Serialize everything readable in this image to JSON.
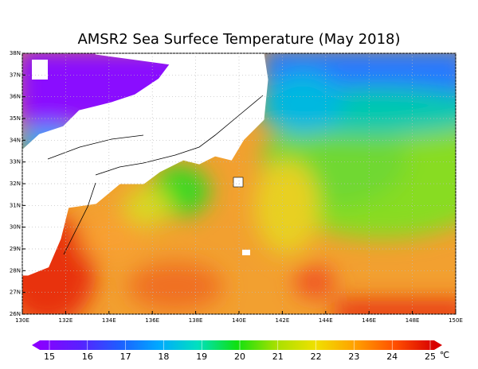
{
  "title": "AMSR2 Sea Surfece Temperature (May 2018)",
  "map": {
    "xlim": [
      130,
      150
    ],
    "ylim": [
      26,
      38
    ],
    "xticks": [
      {
        "value": 130,
        "label": "130E"
      },
      {
        "value": 132,
        "label": "132E"
      },
      {
        "value": 134,
        "label": "134E"
      },
      {
        "value": 136,
        "label": "136E"
      },
      {
        "value": 138,
        "label": "138E"
      },
      {
        "value": 140,
        "label": "140E"
      },
      {
        "value": 142,
        "label": "142E"
      },
      {
        "value": 144,
        "label": "144E"
      },
      {
        "value": 146,
        "label": "146E"
      },
      {
        "value": 148,
        "label": "148E"
      },
      {
        "value": 150,
        "label": "150E"
      }
    ],
    "yticks": [
      {
        "value": 26,
        "label": "26N"
      },
      {
        "value": 27,
        "label": "27N"
      },
      {
        "value": 28,
        "label": "28N"
      },
      {
        "value": 29,
        "label": "29N"
      },
      {
        "value": 30,
        "label": "30N"
      },
      {
        "value": 31,
        "label": "31N"
      },
      {
        "value": 32,
        "label": "32N"
      },
      {
        "value": 33,
        "label": "33N"
      },
      {
        "value": 34,
        "label": "34N"
      },
      {
        "value": 35,
        "label": "35N"
      },
      {
        "value": 36,
        "label": "36N"
      },
      {
        "value": 37,
        "label": "37N"
      },
      {
        "value": 38,
        "label": "38N"
      }
    ]
  },
  "colorbar": {
    "lim": [
      15,
      25
    ],
    "ticks": [
      15,
      16,
      17,
      18,
      19,
      20,
      21,
      22,
      23,
      24,
      25
    ],
    "unit": "℃"
  }
}
